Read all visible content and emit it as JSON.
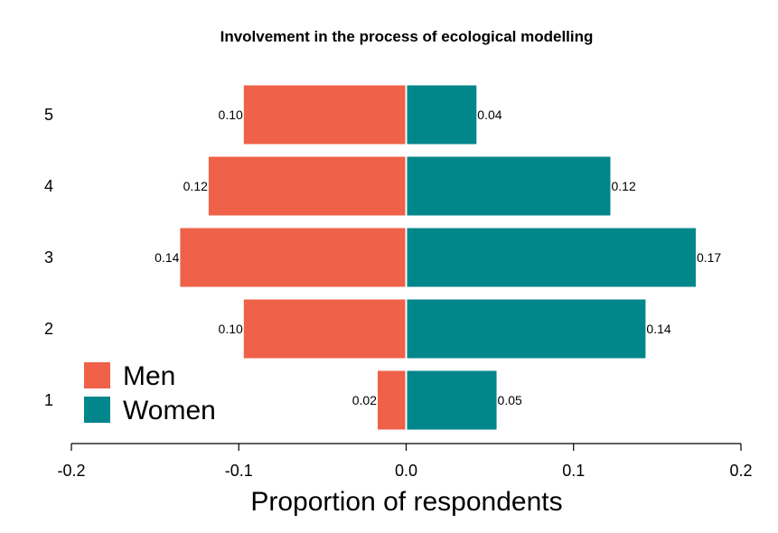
{
  "chart_data": {
    "type": "bar",
    "orientation": "horizontal",
    "layout": "diverging",
    "title": "Involvement in the process of ecological modelling",
    "xlabel": "Proportion of respondents",
    "ylabel": "",
    "categories": [
      "1",
      "2",
      "3",
      "4",
      "5"
    ],
    "xlim": [
      -0.2,
      0.2
    ],
    "x_ticks": [
      -0.2,
      -0.1,
      0.0,
      0.1,
      0.2
    ],
    "x_tick_labels": [
      "-0.2",
      "-0.1",
      "0.0",
      "0.1",
      "0.2"
    ],
    "grid": false,
    "legend_position": "bottom-left",
    "series": [
      {
        "name": "Men",
        "color": "#ef6148",
        "direction": "left",
        "values": [
          0.017,
          0.097,
          0.135,
          0.118,
          0.097
        ],
        "labels": [
          "0.02",
          "0.10",
          "0.14",
          "0.12",
          "0.10"
        ]
      },
      {
        "name": "Women",
        "color": "#00868b",
        "direction": "right",
        "values": [
          0.054,
          0.143,
          0.173,
          0.122,
          0.042
        ],
        "labels": [
          "0.05",
          "0.14",
          "0.17",
          "0.12",
          "0.04"
        ]
      }
    ]
  }
}
